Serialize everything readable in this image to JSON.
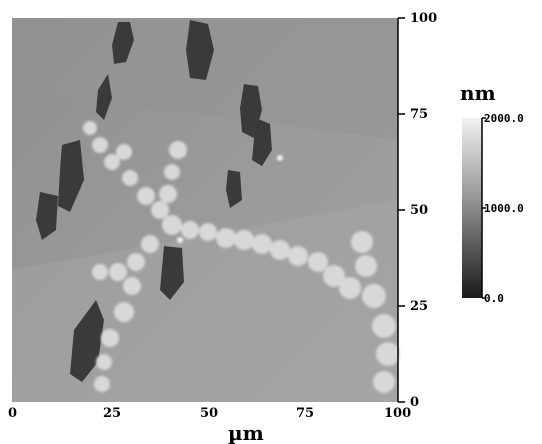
{
  "figure": {
    "x_axis": {
      "unit": "µm",
      "ticks": [
        "0",
        "25",
        "50",
        "75",
        "100"
      ]
    },
    "y_axis": {
      "ticks": [
        "0",
        "25",
        "50",
        "75",
        "100"
      ]
    },
    "colorbar": {
      "unit": "nm",
      "ticks": [
        "0.0",
        "1000.0",
        "2000.0"
      ]
    }
  }
}
